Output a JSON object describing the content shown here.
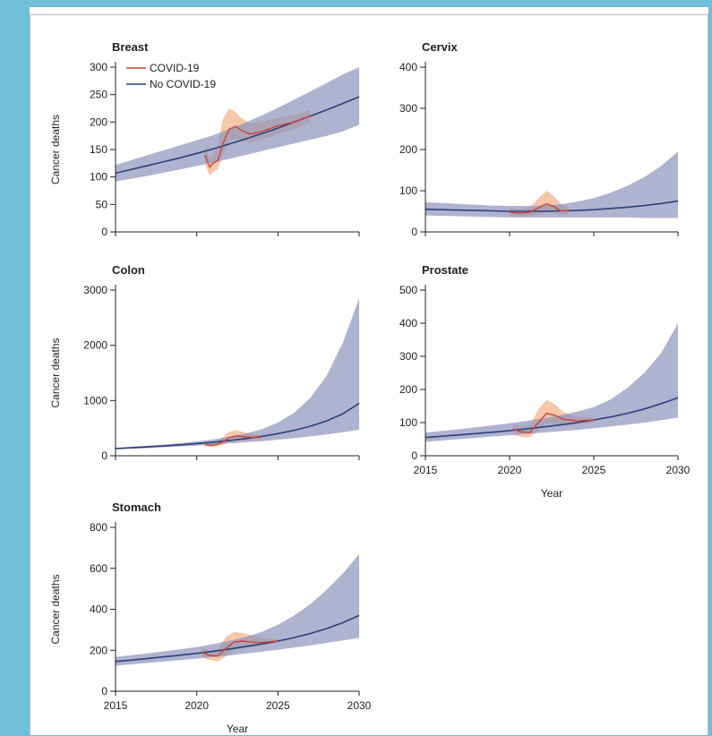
{
  "colors": {
    "covid": "#c8443a",
    "no_covid": "#2b3f7a",
    "covid_band": "#f2b48f",
    "no_covid_band": "#8d93bb",
    "overlap_band": "#9a8fb3"
  },
  "chart_data": [
    {
      "type": "line",
      "title": "Breast",
      "xlabel": "",
      "ylabel": "Cancer deaths",
      "xlim": [
        2015,
        2030
      ],
      "ylim": [
        0,
        300
      ],
      "yticks": [
        0,
        50,
        100,
        150,
        200,
        250,
        300
      ],
      "xticks": [],
      "legend": [
        "COVID-19",
        "No COVID-19"
      ],
      "series": [
        {
          "name": "No COVID-19",
          "x": [
            2015,
            2016,
            2017,
            2018,
            2019,
            2020,
            2021,
            2022,
            2023,
            2024,
            2025,
            2026,
            2027,
            2028,
            2029,
            2030
          ],
          "values": [
            107,
            114,
            121,
            128,
            135,
            143,
            151,
            160,
            169,
            179,
            189,
            200,
            211,
            222,
            234,
            246
          ],
          "lower": [
            92,
            97,
            102,
            108,
            114,
            120,
            126,
            133,
            140,
            147,
            154,
            161,
            168,
            175,
            183,
            195
          ],
          "upper": [
            122,
            131,
            140,
            149,
            158,
            167,
            176,
            187,
            199,
            212,
            226,
            241,
            256,
            271,
            287,
            300
          ]
        },
        {
          "name": "COVID-19",
          "x": [
            2020.5,
            2020.8,
            2021.0,
            2021.3,
            2021.6,
            2022.0,
            2022.4,
            2022.8,
            2023.3,
            2024.0,
            2025.0,
            2026.0,
            2027.0
          ],
          "values": [
            140,
            118,
            125,
            130,
            160,
            187,
            192,
            184,
            178,
            183,
            193,
            200,
            211
          ],
          "lower": [
            124,
            102,
            108,
            114,
            140,
            165,
            170,
            166,
            162,
            168,
            178,
            187,
            200
          ],
          "upper": [
            156,
            134,
            142,
            155,
            205,
            225,
            218,
            206,
            198,
            200,
            208,
            213,
            222
          ]
        }
      ]
    },
    {
      "type": "line",
      "title": "Cervix",
      "xlabel": "",
      "ylabel": "",
      "xlim": [
        2015,
        2030
      ],
      "ylim": [
        0,
        400
      ],
      "yticks": [
        0,
        100,
        200,
        300,
        400
      ],
      "xticks": [],
      "series": [
        {
          "name": "No COVID-19",
          "x": [
            2015,
            2016,
            2017,
            2018,
            2019,
            2020,
            2021,
            2022,
            2023,
            2024,
            2025,
            2026,
            2027,
            2028,
            2029,
            2030
          ],
          "values": [
            55,
            54,
            53,
            52,
            51,
            50,
            50,
            50,
            51,
            52,
            54,
            57,
            60,
            64,
            69,
            75
          ],
          "lower": [
            40,
            39,
            38,
            37,
            36,
            35,
            35,
            35,
            35,
            35,
            35,
            35,
            35,
            34,
            34,
            34
          ],
          "upper": [
            72,
            70,
            68,
            66,
            64,
            63,
            63,
            64,
            67,
            73,
            82,
            95,
            112,
            133,
            160,
            195
          ]
        },
        {
          "name": "COVID-19",
          "x": [
            2020.0,
            2020.6,
            2021.2,
            2021.8,
            2022.2,
            2022.6,
            2023.0,
            2023.5
          ],
          "values": [
            48,
            45,
            48,
            60,
            68,
            62,
            52,
            51
          ],
          "lower": [
            40,
            37,
            38,
            44,
            48,
            46,
            42,
            43
          ],
          "upper": [
            58,
            55,
            60,
            85,
            100,
            88,
            70,
            60
          ]
        }
      ]
    },
    {
      "type": "line",
      "title": "Colon",
      "xlabel": "",
      "ylabel": "Cancer deaths",
      "xlim": [
        2015,
        2030
      ],
      "ylim": [
        0,
        3000
      ],
      "yticks": [
        0,
        1000,
        2000,
        3000
      ],
      "xticks": [],
      "series": [
        {
          "name": "No COVID-19",
          "x": [
            2015,
            2016,
            2017,
            2018,
            2019,
            2020,
            2021,
            2022,
            2023,
            2024,
            2025,
            2026,
            2027,
            2028,
            2029,
            2030
          ],
          "values": [
            130,
            145,
            160,
            178,
            198,
            220,
            245,
            275,
            310,
            350,
            400,
            460,
            535,
            630,
            760,
            950
          ],
          "lower": [
            115,
            128,
            140,
            153,
            168,
            185,
            203,
            222,
            243,
            265,
            290,
            318,
            350,
            385,
            425,
            470
          ],
          "upper": [
            145,
            163,
            182,
            205,
            230,
            260,
            295,
            340,
            400,
            480,
            600,
            780,
            1050,
            1450,
            2050,
            2850
          ]
        },
        {
          "name": "COVID-19",
          "x": [
            2020.5,
            2021.0,
            2021.5,
            2022.0,
            2022.5,
            2023.0,
            2023.5,
            2024.0
          ],
          "values": [
            200,
            190,
            230,
            330,
            360,
            340,
            330,
            340
          ],
          "lower": [
            170,
            160,
            185,
            260,
            290,
            285,
            290,
            305
          ],
          "upper": [
            235,
            230,
            310,
            440,
            460,
            420,
            385,
            375
          ]
        }
      ]
    },
    {
      "type": "line",
      "title": "Prostate",
      "xlabel": "Year",
      "ylabel": "",
      "xlim": [
        2015,
        2030
      ],
      "ylim": [
        0,
        500
      ],
      "yticks": [
        0,
        100,
        200,
        300,
        400,
        500
      ],
      "xticks": [
        2015,
        2020,
        2025,
        2030
      ],
      "series": [
        {
          "name": "No COVID-19",
          "x": [
            2015,
            2016,
            2017,
            2018,
            2019,
            2020,
            2021,
            2022,
            2023,
            2024,
            2025,
            2026,
            2027,
            2028,
            2029,
            2030
          ],
          "values": [
            55,
            59,
            63,
            67,
            71,
            76,
            81,
            87,
            93,
            100,
            108,
            117,
            128,
            141,
            157,
            175
          ],
          "lower": [
            42,
            46,
            50,
            54,
            58,
            62,
            66,
            70,
            74,
            78,
            83,
            88,
            94,
            100,
            107,
            115
          ],
          "upper": [
            70,
            75,
            80,
            86,
            92,
            98,
            105,
            113,
            122,
            133,
            147,
            170,
            205,
            250,
            310,
            400
          ]
        },
        {
          "name": "COVID-19",
          "x": [
            2020.2,
            2020.7,
            2021.2,
            2021.7,
            2022.2,
            2022.7,
            2023.2,
            2024.0,
            2025.0
          ],
          "values": [
            80,
            72,
            70,
            100,
            128,
            122,
            110,
            105,
            108
          ],
          "lower": [
            64,
            56,
            55,
            75,
            98,
            96,
            92,
            94,
            100
          ],
          "upper": [
            96,
            90,
            92,
            140,
            168,
            155,
            132,
            118,
            115
          ]
        }
      ]
    },
    {
      "type": "line",
      "title": "Stomach",
      "xlabel": "Year",
      "ylabel": "Cancer deaths",
      "xlim": [
        2015,
        2030
      ],
      "ylim": [
        0,
        800
      ],
      "yticks": [
        0,
        200,
        400,
        600,
        800
      ],
      "xticks": [
        2015,
        2020,
        2025,
        2030
      ],
      "series": [
        {
          "name": "No COVID-19",
          "x": [
            2015,
            2016,
            2017,
            2018,
            2019,
            2020,
            2021,
            2022,
            2023,
            2024,
            2025,
            2026,
            2027,
            2028,
            2029,
            2030
          ],
          "values": [
            145,
            152,
            160,
            168,
            176,
            185,
            195,
            206,
            218,
            231,
            245,
            262,
            282,
            306,
            335,
            370
          ],
          "lower": [
            125,
            131,
            138,
            145,
            152,
            159,
            167,
            175,
            184,
            193,
            203,
            213,
            224,
            236,
            248,
            260
          ],
          "upper": [
            168,
            176,
            185,
            195,
            205,
            216,
            230,
            246,
            265,
            290,
            325,
            370,
            425,
            495,
            575,
            670
          ]
        },
        {
          "name": "COVID-19",
          "x": [
            2020.3,
            2020.8,
            2021.3,
            2021.8,
            2022.3,
            2022.8,
            2023.3,
            2024.0,
            2025.0
          ],
          "values": [
            190,
            175,
            172,
            210,
            240,
            245,
            240,
            238,
            245
          ],
          "lower": [
            168,
            152,
            145,
            170,
            200,
            210,
            215,
            222,
            238
          ],
          "upper": [
            212,
            198,
            205,
            265,
            290,
            285,
            275,
            262,
            255
          ]
        }
      ]
    }
  ]
}
